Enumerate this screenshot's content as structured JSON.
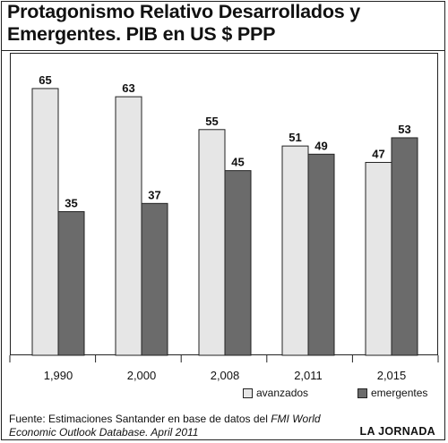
{
  "title_line1": "Protagonismo Relativo Desarrollados y",
  "title_line2": "Emergentes. PIB en US $ PPP",
  "colors": {
    "avanzados": "#e6e6e6",
    "emergentes": "#6b6b6b",
    "stroke": "#222222"
  },
  "chart_data": {
    "type": "bar",
    "title": "Protagonismo Relativo Desarrollados y Emergentes. PIB en US $ PPP",
    "categories": [
      "1,990",
      "2,000",
      "2,008",
      "2,011",
      "2,015"
    ],
    "series": [
      {
        "name": "avanzados",
        "values": [
          65,
          63,
          55,
          51,
          47
        ]
      },
      {
        "name": "emergentes",
        "values": [
          35,
          37,
          45,
          49,
          53
        ]
      }
    ],
    "xlabel": "",
    "ylabel": "",
    "ylim": [
      0,
      70
    ],
    "grid": false,
    "legend_position": "bottom-right"
  },
  "source": {
    "prefix": "Fuente: Estimaciones Santander en base de datos del ",
    "italic1": "FMI World",
    "italic2": "Economic Outlook Database. April 2011"
  },
  "brand": "LA JORNADA"
}
